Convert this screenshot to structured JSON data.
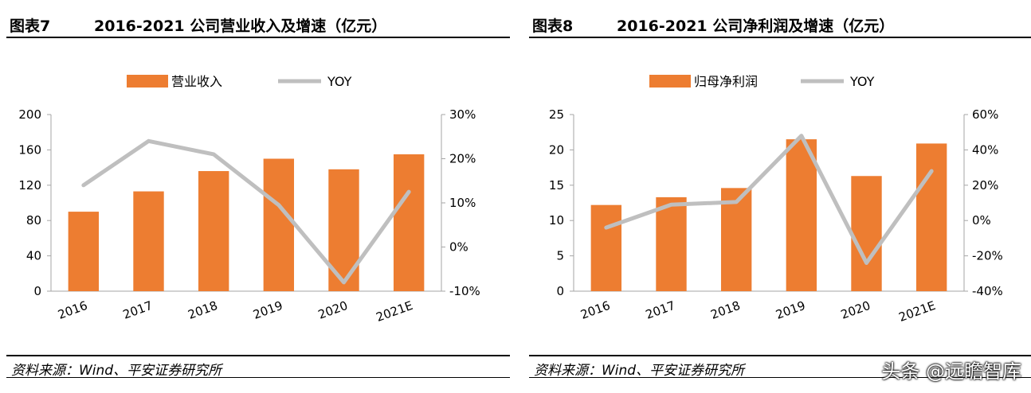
{
  "colors": {
    "bar": "#ED7D31",
    "line": "#BFBFBF",
    "axis": "#A6A6A6"
  },
  "chart_data": [
    {
      "type": "bar",
      "label": "图表7",
      "title": "2016-2021 公司营业收入及增速（亿元）",
      "source": "资料来源：Wind、平安证券研究所",
      "categories": [
        "2016",
        "2017",
        "2018",
        "2019",
        "2020",
        "2021E"
      ],
      "series": [
        {
          "name": "营业收入",
          "type": "bar",
          "axis": "left",
          "values": [
            90,
            113,
            136,
            150,
            138,
            155
          ]
        },
        {
          "name": "YOY",
          "type": "line",
          "axis": "right",
          "values": [
            0.14,
            0.24,
            0.21,
            0.095,
            -0.08,
            0.125
          ]
        }
      ],
      "y_left": {
        "min": 0,
        "max": 200,
        "ticks": [
          "0",
          "40",
          "80",
          "120",
          "160",
          "200"
        ]
      },
      "y_right": {
        "min": -0.1,
        "max": 0.3,
        "ticks": [
          "-10%",
          "0%",
          "10%",
          "20%",
          "30%"
        ]
      },
      "legend_position": "top-center",
      "grid": false
    },
    {
      "type": "bar",
      "label": "图表8",
      "title": "2016-2021 公司净利润及增速（亿元）",
      "source": "资料来源：Wind、平安证券研究所",
      "categories": [
        "2016",
        "2017",
        "2018",
        "2019",
        "2020",
        "2021E"
      ],
      "series": [
        {
          "name": "归母净利润",
          "type": "bar",
          "axis": "left",
          "values": [
            12.2,
            13.3,
            14.6,
            21.5,
            16.3,
            20.9
          ]
        },
        {
          "name": "YOY",
          "type": "line",
          "axis": "right",
          "values": [
            -0.04,
            0.09,
            0.105,
            0.48,
            -0.24,
            0.28
          ]
        }
      ],
      "y_left": {
        "min": 0,
        "max": 25,
        "ticks": [
          "0",
          "5",
          "10",
          "15",
          "20",
          "25"
        ]
      },
      "y_right": {
        "min": -0.4,
        "max": 0.6,
        "ticks": [
          "-40%",
          "-20%",
          "0%",
          "20%",
          "40%",
          "60%"
        ]
      },
      "legend_position": "top-center",
      "grid": false
    }
  ],
  "watermark": "头条 @远瞻智库"
}
